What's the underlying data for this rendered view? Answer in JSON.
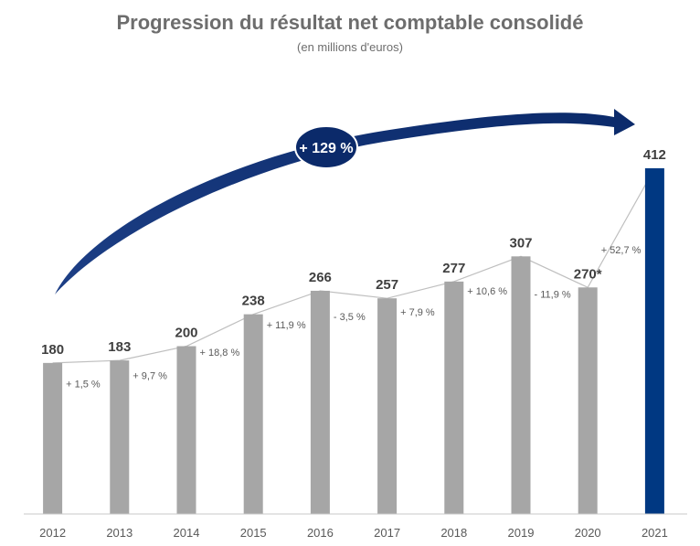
{
  "title": "Progression du résultat net comptable consolidé",
  "subtitle": "(en millions d'euros)",
  "growth_badge": "+ 129 %",
  "colors": {
    "bar": "#a6a6a6",
    "highlight": "#003882",
    "line": "#bfbfbf",
    "text": "#3f3f3f",
    "axis": "#595959"
  },
  "chart_data": {
    "type": "bar",
    "categories": [
      "2012",
      "2013",
      "2014",
      "2015",
      "2016",
      "2017",
      "2018",
      "2019",
      "2020",
      "2021"
    ],
    "values": [
      180,
      183,
      200,
      238,
      266,
      257,
      277,
      307,
      270,
      412
    ],
    "value_labels": [
      "180",
      "183",
      "200",
      "238",
      "266",
      "257",
      "277",
      "307",
      "270*",
      "412"
    ],
    "change_labels": [
      "+ 1,5 %",
      "+ 9,7 %",
      "+ 18,8 %",
      "+ 11,9 %",
      "- 3,5 %",
      "+ 7,9 %",
      "+ 10,6 %",
      "- 11,9 %",
      "+ 52,7 %"
    ],
    "highlight_category": "2021",
    "ylim": [
      0,
      450
    ],
    "grid": false
  }
}
